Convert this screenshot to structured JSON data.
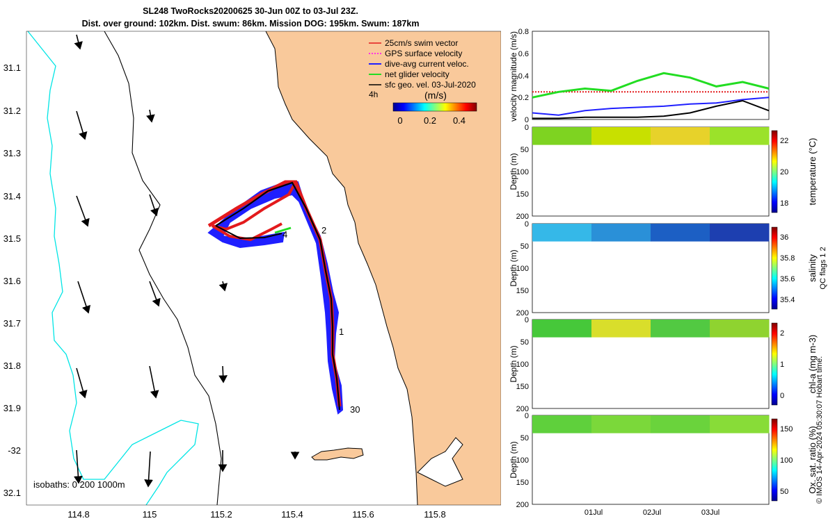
{
  "header": {
    "title_line1": "SL248 TwoRocks20200625 30-Jun 00Z to 03-Jul 23Z.",
    "title_line2": "Dist. over ground: 102km. Dist. swum: 86km. Mission DOG: 195km. Swum: 187km"
  },
  "map": {
    "lon_ticks": [
      "114.8",
      "115",
      "115.2",
      "115.4",
      "115.6",
      "115.8"
    ],
    "lat_ticks": [
      "31.1",
      "31.2",
      "31.3",
      "31.4",
      "31.5",
      "31.6",
      "31.7",
      "31.8",
      "31.9",
      "-32",
      "32.1"
    ],
    "legend": [
      {
        "label": "25cm/s swim vector",
        "color": "#e31a1c"
      },
      {
        "label": "GPS surface velocity",
        "color": "#ff00ff"
      },
      {
        "label": "dive-avg current veloc.",
        "color": "#1f1fff"
      },
      {
        "label": "net glider velocity",
        "color": "#22dd22"
      },
      {
        "label": "sfc geo. vel. 03-Jul-2020",
        "color": "#000000"
      }
    ],
    "legend_time": "4h",
    "colorbar_unit": "(m/s)",
    "colorbar_ticks": [
      "0",
      "0.2",
      "0.4"
    ],
    "isobath_label": "isobaths: 0   200  1000m",
    "track_day_labels": [
      "1",
      "2",
      "30",
      "4"
    ],
    "colors": {
      "land": "#f9c99b",
      "isobath_200": "#000000",
      "isobath_1000": "#00e5e5",
      "track_red": "#e31a1c",
      "track_blue": "#1f1fff"
    }
  },
  "panels": {
    "velocity": {
      "ylabel": "velocity magnitude (m/s)",
      "yticks": [
        "0",
        "0.2",
        "0.4",
        "0.6",
        "0.8"
      ]
    },
    "depth_label": "Depth (m)",
    "depth_ticks": [
      "0",
      "50",
      "100",
      "150",
      "200"
    ],
    "x_ticks": [
      "01Jul",
      "02Jul",
      "03Jul"
    ],
    "temperature": {
      "label": "temperature (°C)",
      "ticks": [
        "18",
        "20",
        "22"
      ]
    },
    "salinity": {
      "label": "salinity",
      "ticks": [
        "35.4",
        "35.6",
        "35.8",
        "36"
      ]
    },
    "salinity_flags": "QC flags 1  2",
    "chla": {
      "label": "chl-a (mg m-3)",
      "ticks": [
        "0",
        "1",
        "2"
      ]
    },
    "oxygen": {
      "label": "Ox. sat. ratio (%)",
      "ticks": [
        "50",
        "100",
        "150"
      ]
    }
  },
  "credit": "© IMOS 14-Apr-2024 05:30:07 Hobart time.",
  "chart_data": [
    {
      "type": "line",
      "title": "",
      "ylabel": "velocity magnitude (m/s)",
      "xlabel": "",
      "x_ticks": [
        "01Jul",
        "02Jul",
        "03Jul"
      ],
      "ylim": [
        0,
        0.8
      ],
      "series": [
        {
          "name": "25cm/s swim vector",
          "color": "#e31a1c",
          "values": [
            0.25,
            0.25,
            0.25,
            0.25,
            0.25,
            0.25,
            0.25,
            0.25,
            0.25,
            0.25
          ]
        },
        {
          "name": "net glider velocity",
          "color": "#22dd22",
          "values": [
            0.2,
            0.25,
            0.28,
            0.26,
            0.35,
            0.42,
            0.38,
            0.3,
            0.34,
            0.28
          ]
        },
        {
          "name": "dive-avg current veloc.",
          "color": "#1f1fff",
          "values": [
            0.06,
            0.04,
            0.08,
            0.1,
            0.11,
            0.12,
            0.14,
            0.15,
            0.18,
            0.2
          ]
        },
        {
          "name": "sfc geo. vel. 03-Jul-2020",
          "color": "#000000",
          "values": [
            0.01,
            0.01,
            0.02,
            0.02,
            0.02,
            0.03,
            0.06,
            0.12,
            0.17,
            0.08
          ]
        }
      ]
    },
    {
      "type": "heatmap",
      "ylabel": "Depth (m)",
      "ylim": [
        200,
        0
      ],
      "colorbar_label": "temperature (°C)",
      "clim": [
        16.5,
        24
      ],
      "depth_range_m": [
        0,
        40
      ]
    },
    {
      "type": "heatmap",
      "ylabel": "Depth (m)",
      "ylim": [
        200,
        0
      ],
      "colorbar_label": "salinity",
      "clim": [
        35.3,
        36.1
      ],
      "depth_range_m": [
        0,
        40
      ]
    },
    {
      "type": "heatmap",
      "ylabel": "Depth (m)",
      "ylim": [
        200,
        0
      ],
      "colorbar_label": "chl-a (mg m-3)",
      "clim": [
        0,
        2
      ],
      "depth_range_m": [
        0,
        40
      ]
    },
    {
      "type": "heatmap",
      "ylabel": "Depth (m)",
      "ylim": [
        200,
        0
      ],
      "colorbar_label": "Ox. sat. ratio (%)",
      "clim": [
        25,
        175
      ],
      "depth_range_m": [
        0,
        40
      ]
    }
  ]
}
